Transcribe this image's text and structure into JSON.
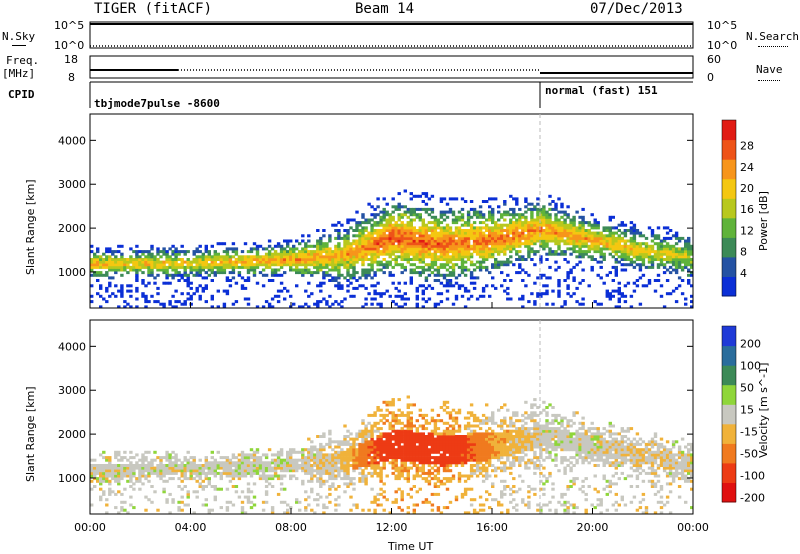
{
  "header": {
    "site": "TIGER (fitACF)",
    "beam": "Beam 14",
    "date": "07/Dec/2013"
  },
  "top_panels": {
    "nsky_label": "N.Sky",
    "nsky_ticks": [
      "10^5",
      "10^0"
    ],
    "nsearch_label": "N.Search",
    "nsearch_ticks": [
      "10^5",
      "10^0"
    ],
    "freq_label": "Freq.",
    "freq_unit": "[MHz]",
    "freq_ticks": [
      "18",
      "8"
    ],
    "nave_label": "Nave",
    "nave_ticks": [
      "60",
      "0"
    ],
    "cpid_label": "CPID",
    "cpid_modes": [
      {
        "name": "tbjmode7pulse -8600",
        "start_hour": 0
      },
      {
        "name": "normal (fast) 151",
        "start_hour": 18
      }
    ]
  },
  "chart_data": [
    {
      "type": "heatmap",
      "title": "",
      "ylabel": "Slant Range [km]",
      "xlabel": "",
      "xlim": [
        0,
        24
      ],
      "ylim": [
        180,
        4600
      ],
      "yticks": [
        "1000",
        "2000",
        "3000",
        "4000"
      ],
      "colorbar": {
        "label": "Power [dB]",
        "ticks": [
          "4",
          "8",
          "12",
          "16",
          "20",
          "24",
          "28"
        ],
        "colors": [
          "#0b2fd6",
          "#2452a3",
          "#3c8a57",
          "#5fb33a",
          "#b8c81d",
          "#f4c711",
          "#f7951b",
          "#ee5318",
          "#e11b14"
        ]
      },
      "bands": [
        {
          "x": [
            0,
            4,
            8,
            10,
            12,
            14,
            16,
            18,
            20,
            22,
            24
          ],
          "center_km": [
            1150,
            1180,
            1250,
            1350,
            1750,
            1600,
            1700,
            1950,
            1700,
            1450,
            1300
          ],
          "halfwidth_km": [
            130,
            130,
            150,
            250,
            350,
            350,
            300,
            260,
            200,
            180,
            200
          ],
          "peak_dB": [
            22,
            20,
            24,
            22,
            28,
            26,
            26,
            24,
            22,
            20,
            16
          ]
        }
      ]
    },
    {
      "type": "heatmap",
      "title": "",
      "ylabel": "Slant Range [km]",
      "xlabel": "Time UT",
      "xlim": [
        0,
        24
      ],
      "ylim": [
        180,
        4600
      ],
      "xticks": [
        "00:00",
        "04:00",
        "08:00",
        "12:00",
        "16:00",
        "20:00",
        "00:00"
      ],
      "yticks": [
        "1000",
        "2000",
        "3000",
        "4000"
      ],
      "colorbar": {
        "label": "Velocity [m s^-1]",
        "ticks": [
          "200",
          "100",
          "50",
          "15",
          "-15",
          "-50",
          "-100",
          "-200"
        ],
        "colors": [
          "#1f3ad7",
          "#2a6d9c",
          "#3c8a57",
          "#8fd63a",
          "#c8c8c0",
          "#f0b23a",
          "#f07a1f",
          "#ed3b14",
          "#e01010"
        ]
      },
      "bands": [
        {
          "x": [
            0,
            4,
            8,
            10,
            12,
            14,
            16,
            18,
            20,
            22,
            24
          ],
          "center_km": [
            1150,
            1180,
            1250,
            1350,
            1750,
            1600,
            1700,
            1950,
            1700,
            1450,
            1300
          ],
          "halfwidth_km": [
            130,
            130,
            150,
            250,
            350,
            350,
            300,
            260,
            200,
            180,
            200
          ],
          "velocity": [
            0,
            0,
            0,
            -20,
            -150,
            -150,
            -50,
            0,
            0,
            -20,
            0
          ]
        }
      ]
    }
  ]
}
